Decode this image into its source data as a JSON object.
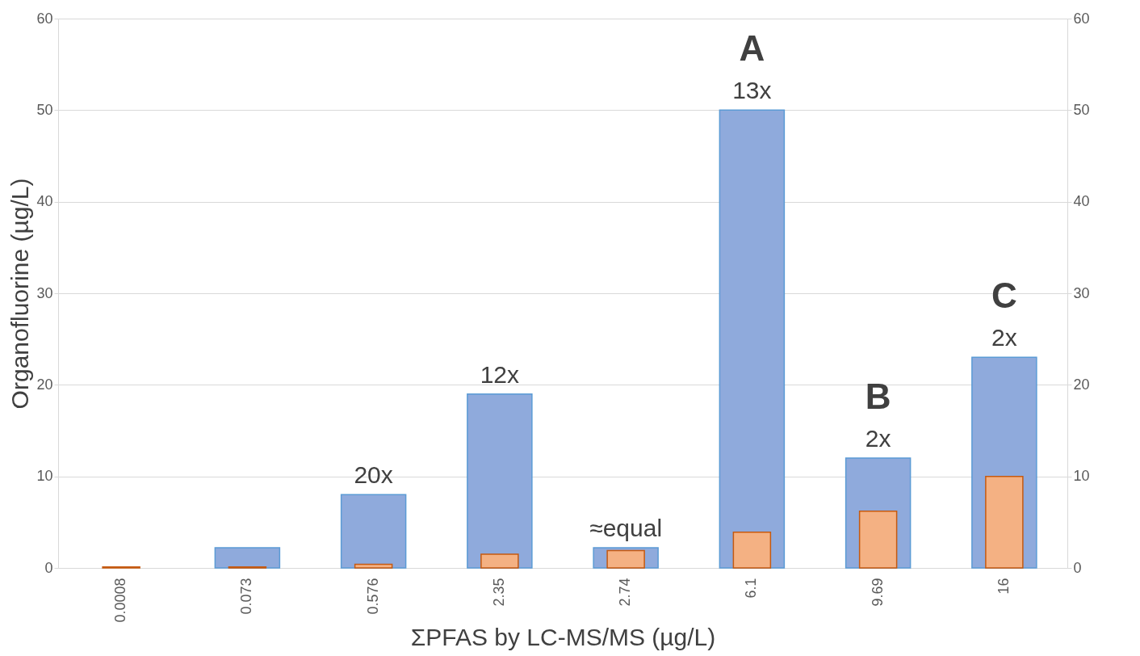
{
  "chart_data": {
    "type": "bar",
    "xlabel": "ΣPFAS by LC-MS/MS (µg/L)",
    "ylabel": "Organofluorine (µg/L)",
    "categories": [
      "0.0008",
      "0.073",
      "0.576",
      "2.35",
      "2.74",
      "6.1",
      "9.69",
      "16"
    ],
    "series": [
      {
        "color": "#8faadc",
        "values": [
          null,
          2.2,
          8,
          19,
          2.2,
          50,
          12,
          23
        ]
      },
      {
        "color": "#f4b183",
        "axis": "y2",
        "values": [
          0.1,
          0.1,
          0.4,
          1.5,
          1.9,
          3.9,
          6.2,
          10
        ]
      }
    ],
    "ylim": [
      0,
      60
    ],
    "yticks": [
      0,
      10,
      20,
      30,
      40,
      50,
      60
    ],
    "y2lim": [
      0,
      60
    ],
    "y2ticks": [
      0,
      10,
      20,
      30,
      40,
      50,
      60
    ],
    "grid": "y",
    "annotations": [
      {
        "text": "20x",
        "x": "0.576",
        "y": 8
      },
      {
        "text": "12x",
        "x": "2.35",
        "y": 19
      },
      {
        "text": "≈equal",
        "x": "2.74",
        "y": 2.2
      },
      {
        "text": "13x",
        "x": "6.1",
        "y": 50
      },
      {
        "text": "A",
        "x": "6.1",
        "y": 50
      },
      {
        "text": "2x",
        "x": "9.69",
        "y": 12
      },
      {
        "text": "B",
        "x": "9.69",
        "y": 12
      },
      {
        "text": "2x",
        "x": "16",
        "y": 23
      },
      {
        "text": "C",
        "x": "16",
        "y": 23
      }
    ]
  }
}
